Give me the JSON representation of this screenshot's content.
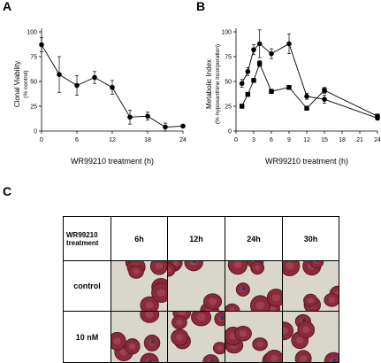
{
  "panels": {
    "a": "A",
    "b": "B",
    "c": "C"
  },
  "chart_data": [
    {
      "type": "line",
      "panel": "A",
      "xlabel": "WR99210 treatment (h)",
      "ylabel": "Clonal Viability",
      "ylabel_sub": "(% control)",
      "xlim": [
        0,
        24
      ],
      "ylim": [
        0,
        100
      ],
      "xticks": [
        0,
        6,
        12,
        18,
        24
      ],
      "yticks": [
        0,
        25,
        50,
        75,
        100
      ],
      "grid": false,
      "series": [
        {
          "marker": "circle",
          "x": [
            0,
            3,
            6,
            9,
            12,
            15,
            18,
            21,
            24
          ],
          "y": [
            87,
            57,
            46,
            54,
            44,
            14,
            15,
            4,
            5
          ],
          "err": [
            7,
            18,
            10,
            6,
            7,
            7,
            4,
            4,
            0
          ]
        }
      ]
    },
    {
      "type": "line",
      "panel": "B",
      "xlabel": "WR99210 treatment (h)",
      "ylabel": "Metabolic Index",
      "ylabel_sub": "(% hypoxanthine incorporation)",
      "xlim": [
        0,
        24
      ],
      "ylim": [
        0,
        100
      ],
      "xticks": [
        0,
        3,
        6,
        9,
        12,
        15,
        18,
        21,
        24
      ],
      "yticks": [
        0,
        25,
        50,
        75,
        100
      ],
      "grid": false,
      "series": [
        {
          "marker": "circle",
          "x": [
            1,
            2,
            3,
            4,
            6,
            9,
            12,
            15,
            24
          ],
          "y": [
            48,
            60,
            82,
            88,
            78,
            88,
            35,
            32,
            13
          ],
          "err": [
            4,
            4,
            5,
            14,
            5,
            10,
            3,
            4,
            2
          ]
        },
        {
          "marker": "square",
          "x": [
            1,
            2,
            3,
            4,
            6,
            9,
            12,
            15,
            24
          ],
          "y": [
            25,
            37,
            51,
            68,
            40,
            44,
            23,
            41,
            15
          ],
          "err": [
            2,
            2,
            2,
            3,
            2,
            2,
            2,
            3,
            2
          ]
        }
      ]
    }
  ],
  "table": {
    "header_col": "WR99210 treatment",
    "times": [
      "6h",
      "12h",
      "24h",
      "30h"
    ],
    "rows": [
      {
        "label": "control"
      },
      {
        "label": "10 nM"
      }
    ]
  },
  "colors": {
    "rbc": "#8a2a3a",
    "rbc_dark": "#5c1a26",
    "background": "#d9d6cc",
    "parasite": "#2a3a6a"
  }
}
